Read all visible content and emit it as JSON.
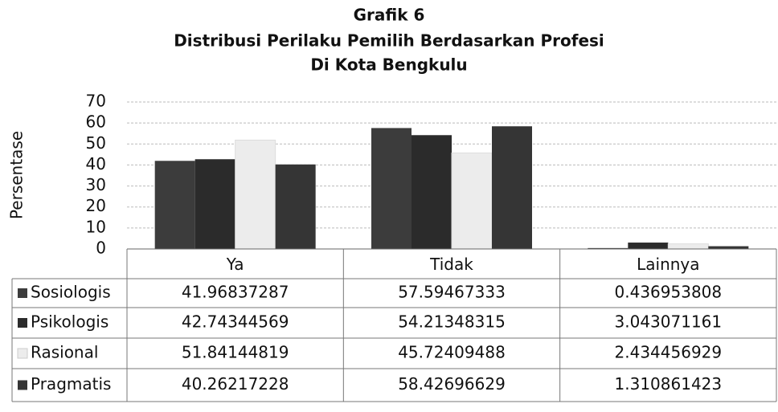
{
  "chart_data": {
    "type": "bar",
    "title": "Grafik 6",
    "subtitle": [
      "Distribusi Perilaku Pemilih Berdasarkan Profesi",
      "Di Kota Bengkulu"
    ],
    "ylabel": "Persentase",
    "categories": [
      "Ya",
      "Tidak",
      "Lainnya"
    ],
    "series": [
      {
        "name": "Sosiologis",
        "color": "#3c3c3c",
        "values": [
          41.96837287,
          57.59467333,
          0.436953808
        ]
      },
      {
        "name": "Psikologis",
        "color": "#2b2b2b",
        "values": [
          42.74344569,
          54.21348315,
          3.043071161
        ]
      },
      {
        "name": "Rasional",
        "color": "#ececec",
        "values": [
          51.84144819,
          45.72409488,
          2.434456929
        ]
      },
      {
        "name": "Pragmatis",
        "color": "#353535",
        "values": [
          40.26217228,
          58.42696629,
          1.310861423
        ]
      }
    ],
    "ylim": [
      0,
      70
    ],
    "yticks": [
      0,
      10,
      20,
      30,
      40,
      50,
      60,
      70
    ],
    "grid": true
  }
}
